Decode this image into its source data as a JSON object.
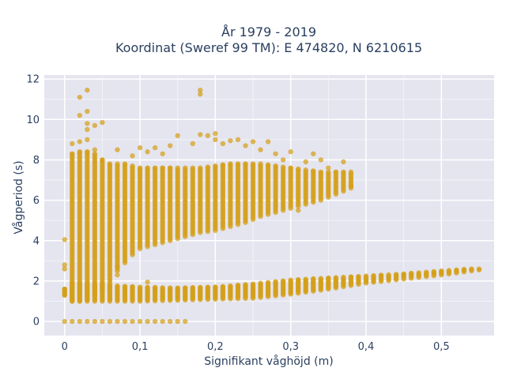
{
  "chart_data": {
    "type": "scatter",
    "title": "År 1979 - 2019",
    "subtitle": "Koordinat (Sweref 99 TM): E 474820, N 6210615",
    "xlabel": "Signifikant våghöjd (m)",
    "ylabel": "Vågperiod (s)",
    "xlim": [
      -0.027,
      0.57
    ],
    "ylim": [
      -0.7,
      12.2
    ],
    "x_ticks": [
      0,
      0.1,
      0.2,
      0.3,
      0.4,
      0.5
    ],
    "x_tick_labels": [
      "0",
      "0,1",
      "0,2",
      "0,3",
      "0,4",
      "0,5"
    ],
    "y_ticks": [
      0,
      2,
      4,
      6,
      8,
      10,
      12
    ],
    "y_tick_labels": [
      "0",
      "2",
      "4",
      "6",
      "8",
      "10",
      "12"
    ],
    "grid": true,
    "marker_color": "#D4A017",
    "background_color": "#E5E5F0",
    "x_step": 0.01,
    "zero_band": {
      "x_min": 0,
      "x_max": 0.16,
      "y": 0
    },
    "low_band": [
      {
        "x": 0.0,
        "y_min": 1.3,
        "y_max": 1.6
      },
      {
        "x": 0.01,
        "y_min": 1.0,
        "y_max": 1.9
      },
      {
        "x": 0.05,
        "y_min": 1.0,
        "y_max": 1.8
      },
      {
        "x": 0.1,
        "y_min": 1.0,
        "y_max": 1.7
      },
      {
        "x": 0.15,
        "y_min": 1.05,
        "y_max": 1.65
      },
      {
        "x": 0.2,
        "y_min": 1.1,
        "y_max": 1.7
      },
      {
        "x": 0.25,
        "y_min": 1.15,
        "y_max": 1.85
      },
      {
        "x": 0.3,
        "y_min": 1.35,
        "y_max": 2.05
      },
      {
        "x": 0.35,
        "y_min": 1.6,
        "y_max": 2.15
      },
      {
        "x": 0.4,
        "y_min": 1.9,
        "y_max": 2.25
      },
      {
        "x": 0.45,
        "y_min": 2.1,
        "y_max": 2.35
      },
      {
        "x": 0.5,
        "y_min": 2.3,
        "y_max": 2.5
      },
      {
        "x": 0.52,
        "y_min": 2.4,
        "y_max": 2.55
      },
      {
        "x": 0.54,
        "y_min": 2.5,
        "y_max": 2.6
      },
      {
        "x": 0.55,
        "y_min": 2.55,
        "y_max": 2.6
      }
    ],
    "high_band": [
      {
        "x": 0.01,
        "y_min": 1.0,
        "y_max": 8.3
      },
      {
        "x": 0.02,
        "y_min": 1.0,
        "y_max": 8.4
      },
      {
        "x": 0.03,
        "y_min": 1.1,
        "y_max": 8.4
      },
      {
        "x": 0.04,
        "y_min": 1.3,
        "y_max": 8.3
      },
      {
        "x": 0.05,
        "y_min": 1.6,
        "y_max": 8.0
      },
      {
        "x": 0.06,
        "y_min": 2.0,
        "y_max": 7.8
      },
      {
        "x": 0.07,
        "y_min": 2.5,
        "y_max": 7.8
      },
      {
        "x": 0.08,
        "y_min": 2.9,
        "y_max": 7.8
      },
      {
        "x": 0.09,
        "y_min": 3.3,
        "y_max": 7.7
      },
      {
        "x": 0.1,
        "y_min": 3.6,
        "y_max": 7.6
      },
      {
        "x": 0.12,
        "y_min": 3.8,
        "y_max": 7.6
      },
      {
        "x": 0.14,
        "y_min": 4.0,
        "y_max": 7.6
      },
      {
        "x": 0.16,
        "y_min": 4.2,
        "y_max": 7.6
      },
      {
        "x": 0.18,
        "y_min": 4.4,
        "y_max": 7.6
      },
      {
        "x": 0.2,
        "y_min": 4.5,
        "y_max": 7.7
      },
      {
        "x": 0.22,
        "y_min": 4.7,
        "y_max": 7.8
      },
      {
        "x": 0.24,
        "y_min": 4.9,
        "y_max": 7.8
      },
      {
        "x": 0.26,
        "y_min": 5.2,
        "y_max": 7.8
      },
      {
        "x": 0.28,
        "y_min": 5.4,
        "y_max": 7.7
      },
      {
        "x": 0.3,
        "y_min": 5.6,
        "y_max": 7.6
      },
      {
        "x": 0.32,
        "y_min": 5.8,
        "y_max": 7.5
      },
      {
        "x": 0.34,
        "y_min": 6.0,
        "y_max": 7.4
      },
      {
        "x": 0.36,
        "y_min": 6.3,
        "y_max": 7.4
      },
      {
        "x": 0.38,
        "y_min": 6.6,
        "y_max": 7.4
      }
    ],
    "outliers": [
      {
        "x": 0.0,
        "y": 4.05
      },
      {
        "x": 0.0,
        "y": 2.8
      },
      {
        "x": 0.0,
        "y": 2.6
      },
      {
        "x": 0.0,
        "y": 1.6
      },
      {
        "x": 0.0,
        "y": 1.3
      },
      {
        "x": 0.01,
        "y": 8.8
      },
      {
        "x": 0.02,
        "y": 11.1
      },
      {
        "x": 0.02,
        "y": 10.2
      },
      {
        "x": 0.02,
        "y": 8.9
      },
      {
        "x": 0.03,
        "y": 11.45
      },
      {
        "x": 0.03,
        "y": 10.4
      },
      {
        "x": 0.03,
        "y": 9.8
      },
      {
        "x": 0.03,
        "y": 9.5
      },
      {
        "x": 0.03,
        "y": 9.0
      },
      {
        "x": 0.04,
        "y": 9.7
      },
      {
        "x": 0.05,
        "y": 9.85
      },
      {
        "x": 0.04,
        "y": 8.5
      },
      {
        "x": 0.07,
        "y": 8.5
      },
      {
        "x": 0.09,
        "y": 8.2
      },
      {
        "x": 0.1,
        "y": 8.6
      },
      {
        "x": 0.11,
        "y": 8.4
      },
      {
        "x": 0.12,
        "y": 8.6
      },
      {
        "x": 0.13,
        "y": 8.3
      },
      {
        "x": 0.14,
        "y": 8.7
      },
      {
        "x": 0.15,
        "y": 9.2
      },
      {
        "x": 0.17,
        "y": 8.8
      },
      {
        "x": 0.18,
        "y": 11.45
      },
      {
        "x": 0.18,
        "y": 11.25
      },
      {
        "x": 0.18,
        "y": 9.25
      },
      {
        "x": 0.19,
        "y": 9.2
      },
      {
        "x": 0.2,
        "y": 9.3
      },
      {
        "x": 0.2,
        "y": 9.0
      },
      {
        "x": 0.21,
        "y": 8.8
      },
      {
        "x": 0.22,
        "y": 8.95
      },
      {
        "x": 0.23,
        "y": 9.0
      },
      {
        "x": 0.24,
        "y": 8.7
      },
      {
        "x": 0.25,
        "y": 8.9
      },
      {
        "x": 0.26,
        "y": 8.5
      },
      {
        "x": 0.27,
        "y": 8.9
      },
      {
        "x": 0.28,
        "y": 8.3
      },
      {
        "x": 0.29,
        "y": 8.0
      },
      {
        "x": 0.3,
        "y": 8.4
      },
      {
        "x": 0.32,
        "y": 7.9
      },
      {
        "x": 0.33,
        "y": 8.3
      },
      {
        "x": 0.34,
        "y": 8.0
      },
      {
        "x": 0.35,
        "y": 7.6
      },
      {
        "x": 0.37,
        "y": 7.9
      },
      {
        "x": 0.38,
        "y": 6.7
      },
      {
        "x": 0.31,
        "y": 5.5
      },
      {
        "x": 0.05,
        "y": 1.85
      },
      {
        "x": 0.07,
        "y": 2.3
      },
      {
        "x": 0.07,
        "y": 2.7
      },
      {
        "x": 0.11,
        "y": 1.95
      },
      {
        "x": 0.06,
        "y": 1.9
      }
    ]
  }
}
